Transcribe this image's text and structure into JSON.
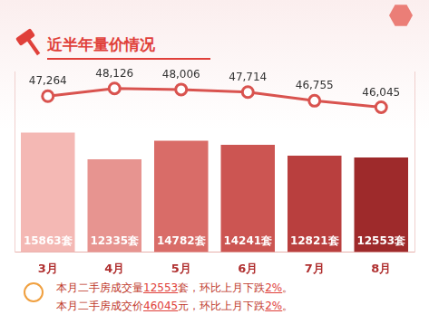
{
  "chart_data": {
    "type": "bar",
    "title": "近半年量价情况",
    "categories": [
      "3月",
      "4月",
      "5月",
      "6月",
      "7月",
      "8月"
    ],
    "series": [
      {
        "type": "bar",
        "colors": [
          "#f4b8b4",
          "#e79490",
          "#d96c68",
          "#cc5552",
          "#b93f3e",
          "#9e2a2b"
        ],
        "values": [
          15863,
          12335,
          14782,
          14241,
          12821,
          12553
        ],
        "value_labels": [
          "15863套",
          "12335套",
          "14782套",
          "14241套",
          "12821套",
          "12553套"
        ]
      },
      {
        "type": "line",
        "axis": "y2",
        "color": "#d9534f",
        "marker": "circle",
        "values": [
          47264,
          48126,
          48006,
          47714,
          46755,
          46045
        ],
        "value_labels": [
          "47,264",
          "48,126",
          "48,006",
          "47,714",
          "46,755",
          "46,045"
        ]
      }
    ],
    "ylim": [
      0,
      24000
    ],
    "y2lim": [
      30000,
      50000
    ],
    "grid": false,
    "data_labels": true,
    "tick_labels": "x",
    "annotations": [
      "本月二手房成交量12553套，环比上月下跌2%。",
      "本月二手房成交价46045元，环比上月下跌2%。"
    ]
  }
}
